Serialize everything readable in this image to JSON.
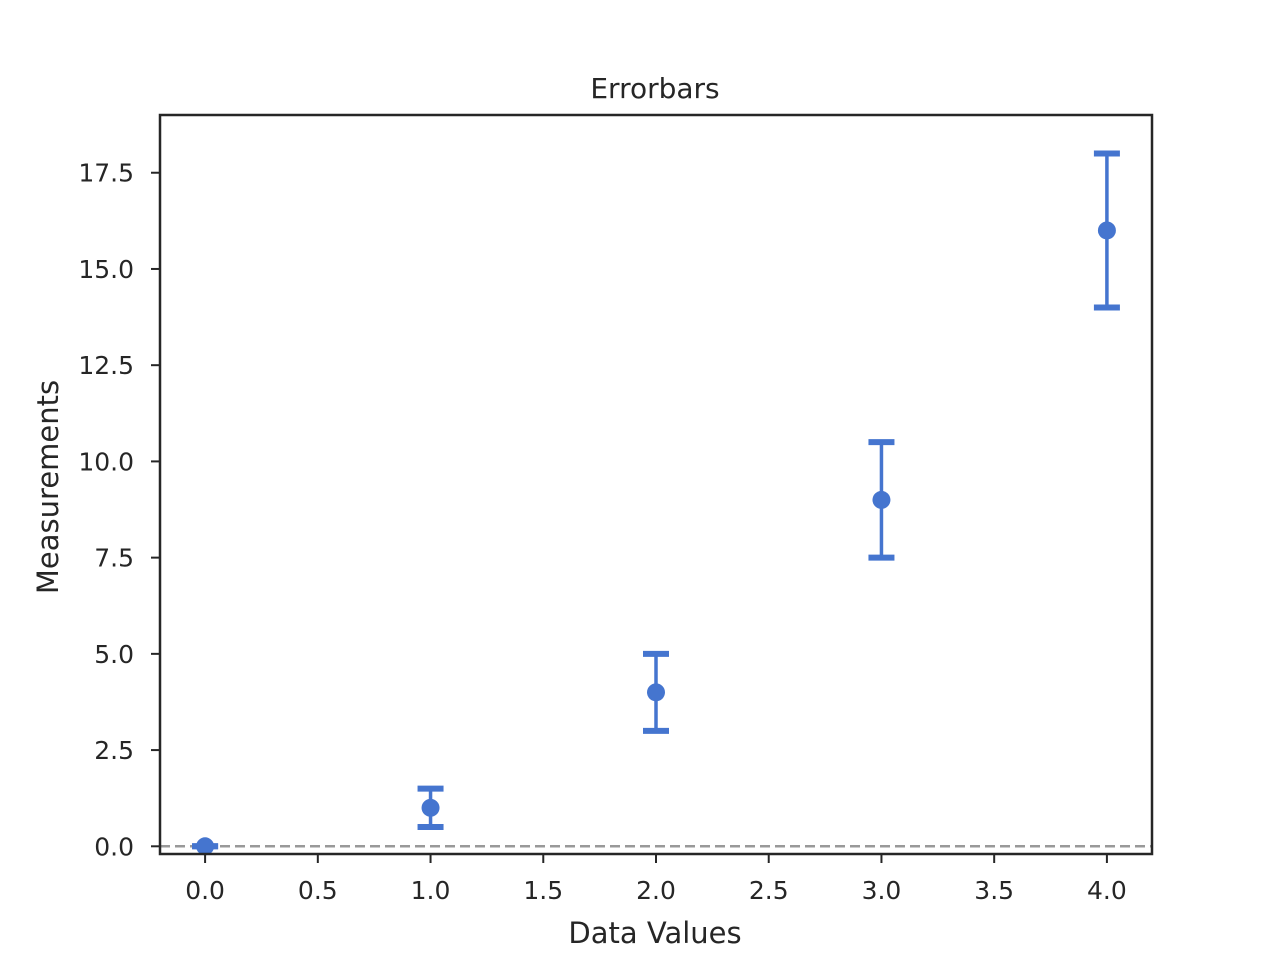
{
  "chart_data": {
    "type": "scatter",
    "title": "Errorbars",
    "xlabel": "Data Values",
    "ylabel": "Measurements",
    "xlim": [
      -0.2,
      4.2
    ],
    "ylim": [
      -0.2,
      19.0
    ],
    "xticks": [
      "0.0",
      "0.5",
      "1.0",
      "1.5",
      "2.0",
      "2.5",
      "3.0",
      "3.5",
      "4.0"
    ],
    "yticks": [
      "0.0",
      "2.5",
      "5.0",
      "7.5",
      "10.0",
      "12.5",
      "15.0",
      "17.5"
    ],
    "grid": false,
    "legend": "none",
    "reference_line": {
      "y": 0,
      "style": "dashed",
      "color": "#999999"
    },
    "series": [
      {
        "color": "#4575cf",
        "x": [
          0,
          1,
          2,
          3,
          4
        ],
        "y": [
          0,
          1,
          4,
          9,
          16
        ],
        "err_low": [
          0,
          0.5,
          1.0,
          1.5,
          2.0
        ],
        "err_high": [
          0,
          0.5,
          1.0,
          1.5,
          2.0
        ]
      }
    ]
  }
}
